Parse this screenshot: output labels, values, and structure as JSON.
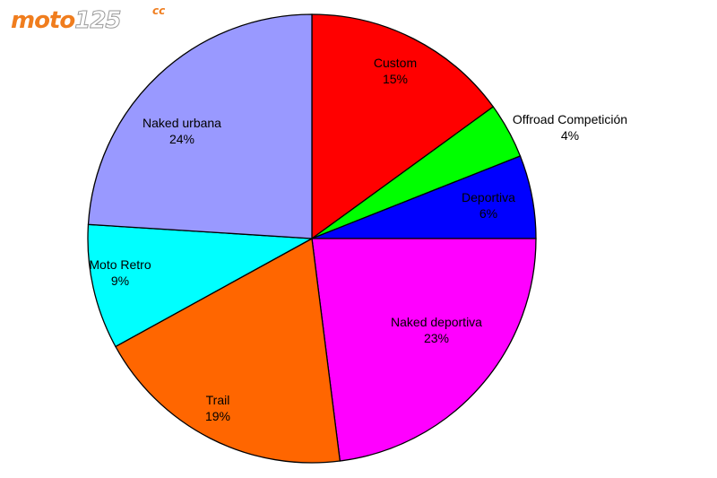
{
  "logo": {
    "text_main": "moto",
    "text_num": "125",
    "text_cc": "cc"
  },
  "chart_data": {
    "type": "pie",
    "title": "",
    "start_angle_deg": 90,
    "direction": "clockwise",
    "slices": [
      {
        "label": "Custom",
        "percent_label": "15%",
        "value": 15,
        "color": "#ff0000"
      },
      {
        "label": "Offroad Competición",
        "percent_label": "4%",
        "value": 4,
        "color": "#00ff00"
      },
      {
        "label": "Deportiva",
        "percent_label": "6%",
        "value": 6,
        "color": "#0000ff"
      },
      {
        "label": "Naked deportiva",
        "percent_label": "23%",
        "value": 23,
        "color": "#ff00ff"
      },
      {
        "label": "Trail",
        "percent_label": "19%",
        "value": 19,
        "color": "#ff6600"
      },
      {
        "label": "Moto Retro",
        "percent_label": "9%",
        "value": 9,
        "color": "#00ffff"
      },
      {
        "label": "Naked urbana",
        "percent_label": "24%",
        "value": 24,
        "color": "#9999ff"
      }
    ]
  }
}
